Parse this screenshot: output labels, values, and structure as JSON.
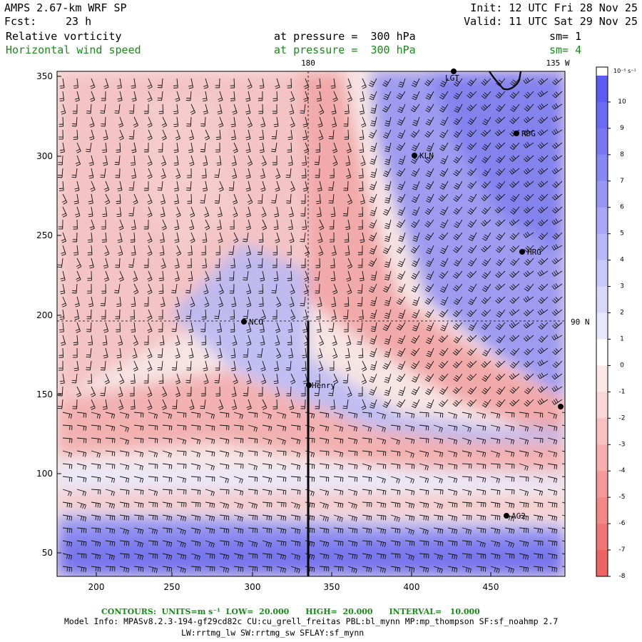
{
  "header": {
    "model": "AMPS 2.67-km WRF SP",
    "forecast_label": "Fcst:",
    "forecast_value": "23 h",
    "init": "Init: 12 UTC Fri 28 Nov 25",
    "valid": "Valid: 11 UTC Sat 29 Nov 25",
    "field1_name": "Relative vorticity",
    "field1_level": "at pressure =  300 hPa",
    "field1_sm": "sm= 1",
    "field2_name": "Horizontal wind speed",
    "field2_level": "at pressure =  300 hPa",
    "field2_sm": "sm= 4"
  },
  "map": {
    "x_ticks": [
      "200",
      "250",
      "300",
      "350",
      "400",
      "450"
    ],
    "y_ticks": [
      "350",
      "300",
      "250",
      "200",
      "150",
      "100",
      "50"
    ],
    "meridian_180": "180",
    "meridian_135w": "135 W",
    "parallel_90n": "90 N",
    "stations": [
      "LGT",
      "RDG",
      "KLN",
      "HRG",
      "NCO",
      "Henry",
      "AG2"
    ]
  },
  "colorbar": {
    "units": "10⁻⁵ s⁻¹",
    "labels": [
      "10",
      "9",
      "8",
      "7",
      "6",
      "5",
      "4",
      "3",
      "2",
      "1",
      "0",
      "-1",
      "-2",
      "-3",
      "-4",
      "-5",
      "-6",
      "-7",
      "-8"
    ],
    "colors": [
      "#5c5cf2",
      "#6a6af2",
      "#7878f2",
      "#8888f3",
      "#9898f4",
      "#a8a8f6",
      "#b8b8f8",
      "#c8c8fa",
      "#d8d8fb",
      "#e8e8fd",
      "#ffffff",
      "#fde8e8",
      "#fbd6d6",
      "#f9c2c2",
      "#f6aeae",
      "#f49a9a",
      "#f28888",
      "#f07676",
      "#ee6464"
    ]
  },
  "footer": {
    "contours": "CONTOURS:  UNITS=m s⁻¹  LOW=  20.000      HIGH=  20.000      INTERVAL=   10.000",
    "model_info": "Model Info: MPASv8.2.3-194-gf29cd82c CU:cu_grell_freitas PBL:bl_mynn MP:mp_thompson SF:sf_noahmp 2.7",
    "physics": "LW:rrtmg_lw SW:rrtmg_sw SFLAY:sf_mynn"
  }
}
